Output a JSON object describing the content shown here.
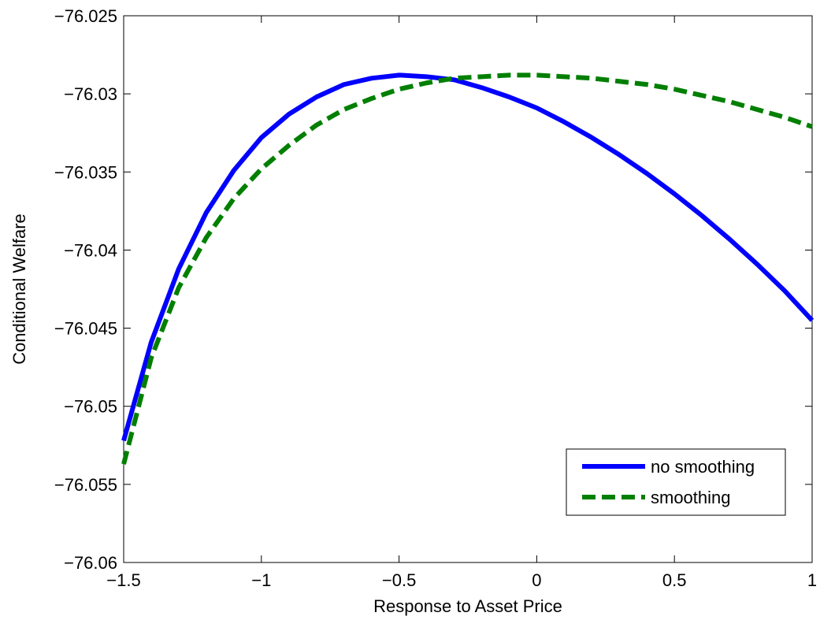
{
  "chart_data": {
    "type": "line",
    "title": "",
    "xlabel": "Response to Asset Price",
    "ylabel": "Conditional Welfare",
    "xlim": [
      -1.5,
      1
    ],
    "ylim": [
      -76.06,
      -76.025
    ],
    "x_ticks": [
      -1.5,
      -1,
      -0.5,
      0,
      0.5,
      1
    ],
    "x_tick_labels": [
      "−1.5",
      "−1",
      "−0.5",
      "0",
      "0.5",
      "1"
    ],
    "y_ticks": [
      -76.025,
      -76.03,
      -76.035,
      -76.04,
      -76.045,
      -76.05,
      -76.055,
      -76.06
    ],
    "y_tick_labels": [
      "−76.025",
      "−76.03",
      "−76.035",
      "−76.04",
      "−76.045",
      "−76.05",
      "−76.055",
      "−76.06"
    ],
    "grid": false,
    "legend_position": "bottom-right",
    "x": [
      -1.5,
      -1.4,
      -1.3,
      -1.2,
      -1.1,
      -1.0,
      -0.9,
      -0.8,
      -0.7,
      -0.6,
      -0.5,
      -0.4,
      -0.3,
      -0.2,
      -0.1,
      0.0,
      0.1,
      0.2,
      0.3,
      0.4,
      0.5,
      0.6,
      0.7,
      0.8,
      0.9,
      1.0
    ],
    "series": [
      {
        "name": "no smoothing",
        "color": "#0000ff",
        "style": "solid",
        "values": [
          -76.0522,
          -76.0459,
          -76.0412,
          -76.0376,
          -76.0349,
          -76.0328,
          -76.0313,
          -76.0302,
          -76.0294,
          -76.029,
          -76.0288,
          -76.0289,
          -76.0291,
          -76.0296,
          -76.0302,
          -76.0309,
          -76.0318,
          -76.0328,
          -76.0339,
          -76.0351,
          -76.0364,
          -76.0378,
          -76.0393,
          -76.0409,
          -76.0426,
          -76.0445
        ]
      },
      {
        "name": "smoothing",
        "color": "#007f00",
        "style": "dashed",
        "values": [
          -76.0537,
          -76.0469,
          -76.0424,
          -76.0392,
          -76.0367,
          -76.0348,
          -76.0333,
          -76.032,
          -76.031,
          -76.0303,
          -76.0297,
          -76.0293,
          -76.029,
          -76.0289,
          -76.0288,
          -76.0288,
          -76.0289,
          -76.029,
          -76.0292,
          -76.0294,
          -76.0297,
          -76.0301,
          -76.0305,
          -76.031,
          -76.0315,
          -76.0321
        ]
      }
    ]
  }
}
